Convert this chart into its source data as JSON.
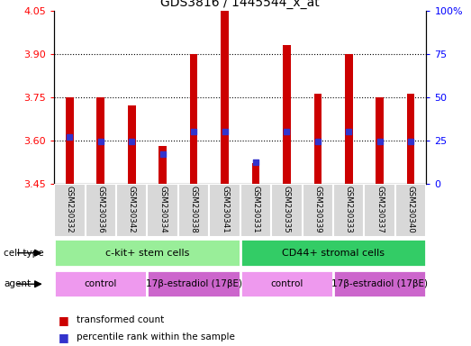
{
  "title": "GDS3816 / 1445544_x_at",
  "samples": [
    "GSM230332",
    "GSM230336",
    "GSM230342",
    "GSM230334",
    "GSM230338",
    "GSM230341",
    "GSM230331",
    "GSM230335",
    "GSM230339",
    "GSM230333",
    "GSM230337",
    "GSM230340"
  ],
  "transformed_count": [
    3.75,
    3.75,
    3.72,
    3.58,
    3.9,
    4.05,
    3.52,
    3.93,
    3.76,
    3.9,
    3.75,
    3.76
  ],
  "percentile_rank": [
    27,
    24,
    24,
    17,
    30,
    30,
    12,
    30,
    24,
    30,
    24,
    24
  ],
  "ylim_left": [
    3.45,
    4.05
  ],
  "ylim_right": [
    0,
    100
  ],
  "yticks_left": [
    3.45,
    3.6,
    3.75,
    3.9,
    4.05
  ],
  "yticks_right": [
    0,
    25,
    50,
    75,
    100
  ],
  "bar_color": "#cc0000",
  "dot_color": "#3333cc",
  "grid_ticks": [
    3.6,
    3.75,
    3.9
  ],
  "cell_type_groups": [
    {
      "label": "c-kit+ stem cells",
      "start": 0,
      "end": 5,
      "color": "#99ee99"
    },
    {
      "label": "CD44+ stromal cells",
      "start": 6,
      "end": 11,
      "color": "#33cc66"
    }
  ],
  "agent_groups": [
    {
      "label": "control",
      "start": 0,
      "end": 2,
      "color": "#ee99ee"
    },
    {
      "label": "17β-estradiol (17βE)",
      "start": 3,
      "end": 5,
      "color": "#cc66cc"
    },
    {
      "label": "control",
      "start": 6,
      "end": 8,
      "color": "#ee99ee"
    },
    {
      "label": "17β-estradiol (17βE)",
      "start": 9,
      "end": 11,
      "color": "#cc66cc"
    }
  ],
  "legend_items": [
    {
      "label": "transformed count",
      "color": "#cc0000"
    },
    {
      "label": "percentile rank within the sample",
      "color": "#3333cc"
    }
  ],
  "bar_width": 0.25,
  "dot_size": 25
}
